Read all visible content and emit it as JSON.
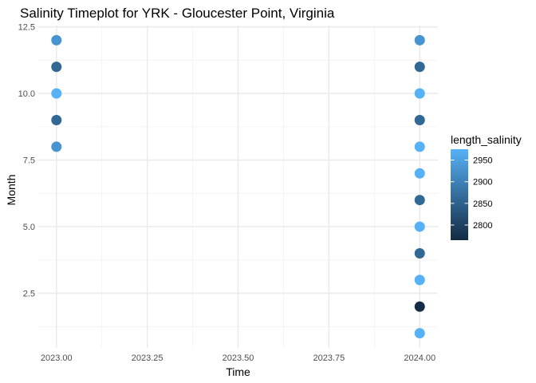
{
  "chart_data": {
    "type": "scatter",
    "title": "Salinity Timeplot for YRK - Gloucester Point, Virginia",
    "xlabel": "Time",
    "ylabel": "Month",
    "xlim": [
      2022.95,
      2024.05
    ],
    "ylim": [
      0.45,
      12.55
    ],
    "xticks": [
      2023.0,
      2023.25,
      2023.5,
      2023.75,
      2024.0
    ],
    "xtick_labels": [
      "2023.00",
      "2023.25",
      "2023.50",
      "2023.75",
      "2024.00"
    ],
    "yticks": [
      2.5,
      5.0,
      7.5,
      10.0,
      12.5
    ],
    "ytick_labels": [
      "2.5",
      "5.0",
      "7.5",
      "10.0",
      "12.5"
    ],
    "grid": true,
    "color_scale": {
      "name": "length_salinity",
      "low_color": "#132B43",
      "high_color": "#56B1F7",
      "limits": [
        2765,
        2975
      ],
      "breaks": [
        2800,
        2850,
        2900,
        2950
      ],
      "break_labels": [
        "2800",
        "2850",
        "2900",
        "2950"
      ]
    },
    "points": [
      {
        "x": 2023.0,
        "y": 12,
        "length_salinity": 2930
      },
      {
        "x": 2023.0,
        "y": 11,
        "length_salinity": 2860
      },
      {
        "x": 2023.0,
        "y": 10,
        "length_salinity": 2975
      },
      {
        "x": 2023.0,
        "y": 9,
        "length_salinity": 2860
      },
      {
        "x": 2023.0,
        "y": 8,
        "length_salinity": 2930
      },
      {
        "x": 2024.0,
        "y": 12,
        "length_salinity": 2930
      },
      {
        "x": 2024.0,
        "y": 11,
        "length_salinity": 2860
      },
      {
        "x": 2024.0,
        "y": 10,
        "length_salinity": 2975
      },
      {
        "x": 2024.0,
        "y": 9,
        "length_salinity": 2860
      },
      {
        "x": 2024.0,
        "y": 8,
        "length_salinity": 2975
      },
      {
        "x": 2024.0,
        "y": 7,
        "length_salinity": 2975
      },
      {
        "x": 2024.0,
        "y": 6,
        "length_salinity": 2860
      },
      {
        "x": 2024.0,
        "y": 5,
        "length_salinity": 2975
      },
      {
        "x": 2024.0,
        "y": 4,
        "length_salinity": 2860
      },
      {
        "x": 2024.0,
        "y": 3,
        "length_salinity": 2975
      },
      {
        "x": 2024.0,
        "y": 2,
        "length_salinity": 2768
      },
      {
        "x": 2024.0,
        "y": 1,
        "length_salinity": 2975
      }
    ]
  }
}
